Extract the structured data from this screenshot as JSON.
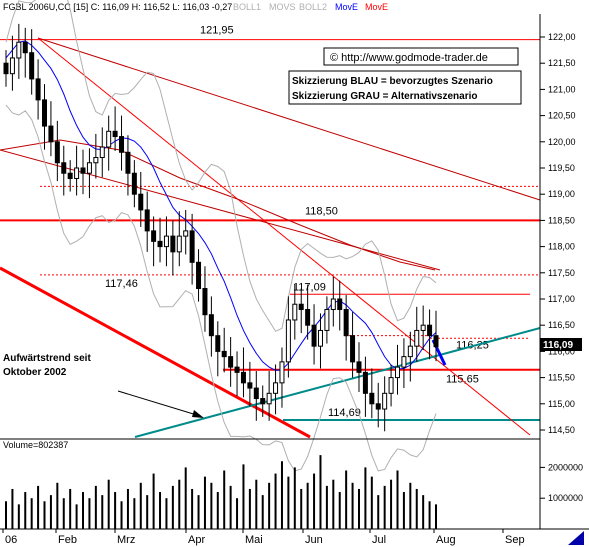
{
  "header": {
    "text": "FGBL 2006U,CC [15] C: 116,09 H: 116,52 L: 116,03 -0,27",
    "indicators": [
      {
        "label": "BOLL1",
        "color": "#b0b0b0"
      },
      {
        "label": "MOVS",
        "color": "#b0b0b0"
      },
      {
        "label": "BOLL2",
        "color": "#b0b0b0"
      },
      {
        "label": "MovE",
        "color": "#0000ff"
      },
      {
        "label": "MovE",
        "color": "#ff0000"
      }
    ]
  },
  "copyright": "© http://www.godmode-trader.de",
  "legend": [
    "Skizzierung BLAU = bevorzugtes Szenario",
    "Skizzierung GRAU = Alternativszenario"
  ],
  "annotation": [
    "Aufwärtstrend seit",
    "Oktober 2002"
  ],
  "last_price": "116,09",
  "volume_label": "Volume=802387",
  "colors": {
    "red": "#ff0000",
    "darkred": "#c00000",
    "teal": "#008b8b",
    "blue": "#0000ff",
    "bollinger": "#b0b0b0",
    "candle": "#000000"
  },
  "chart_data": {
    "type": "candlestick",
    "x_labels": [
      "06",
      "Feb",
      "Mrz",
      "Apr",
      "Mai",
      "Jun",
      "Jul",
      "Aug",
      "Sep"
    ],
    "y_ticks": [
      "122,00",
      "121,50",
      "121,00",
      "120,50",
      "120,00",
      "119,50",
      "119,00",
      "118,50",
      "118,00",
      "117,50",
      "117,00",
      "116,50",
      "116,00",
      "115,50",
      "115,00",
      "114,50"
    ],
    "ylim": [
      114.4,
      122.2
    ],
    "volume_ticks": [
      "2000000",
      "1000000"
    ],
    "volume_ylim": [
      0,
      2500000
    ],
    "levels": [
      {
        "label": "121,95",
        "value": 121.95
      },
      {
        "label": "118,50",
        "value": 118.5
      },
      {
        "label": "117,46",
        "value": 117.46
      },
      {
        "label": "117,09",
        "value": 117.09
      },
      {
        "label": "116,25",
        "value": 116.25
      },
      {
        "label": "115,65",
        "value": 115.65
      },
      {
        "label": "114,69",
        "value": 114.69
      }
    ],
    "closes": [
      121.3,
      121.6,
      121.9,
      121.7,
      121.2,
      120.8,
      120.3,
      120.0,
      119.6,
      119.4,
      119.3,
      119.5,
      119.4,
      119.6,
      119.7,
      119.9,
      120.2,
      120.1,
      119.8,
      119.4,
      119.0,
      118.7,
      118.3,
      118.1,
      118.0,
      118.2,
      117.9,
      118.2,
      118.3,
      117.7,
      117.2,
      116.7,
      116.3,
      116.0,
      115.9,
      115.7,
      115.6,
      115.4,
      115.3,
      115.1,
      115.0,
      115.2,
      115.4,
      115.8,
      116.6,
      116.9,
      116.8,
      116.5,
      116.1,
      116.4,
      116.8,
      117.0,
      116.8,
      116.3,
      115.8,
      115.6,
      115.2,
      115.0,
      114.9,
      115.2,
      115.5,
      115.7,
      115.9,
      116.1,
      116.4,
      116.5,
      116.3,
      116.09
    ],
    "volumes": [
      900000,
      1300000,
      800000,
      1200000,
      1000000,
      1400000,
      900000,
      1100000,
      1500000,
      1000000,
      1300000,
      800000,
      1200000,
      1000000,
      1400000,
      1100000,
      1600000,
      1200000,
      900000,
      1300000,
      1000000,
      1500000,
      1100000,
      1800000,
      1200000,
      1000000,
      1400000,
      1600000,
      2000000,
      1300000,
      1100000,
      1700000,
      1500000,
      1200000,
      1900000,
      1400000,
      1000000,
      2100000,
      1300000,
      1600000,
      1100000,
      1500000,
      1800000,
      2200000,
      1700000,
      2000000,
      1300000,
      1500000,
      1800000,
      2400000,
      1400000,
      1600000,
      1200000,
      1900000,
      1500000,
      1300000,
      2000000,
      1700000,
      1100000,
      1400000,
      1600000,
      1900000,
      1200000,
      1500000,
      1300000,
      1100000,
      900000,
      800000
    ]
  }
}
